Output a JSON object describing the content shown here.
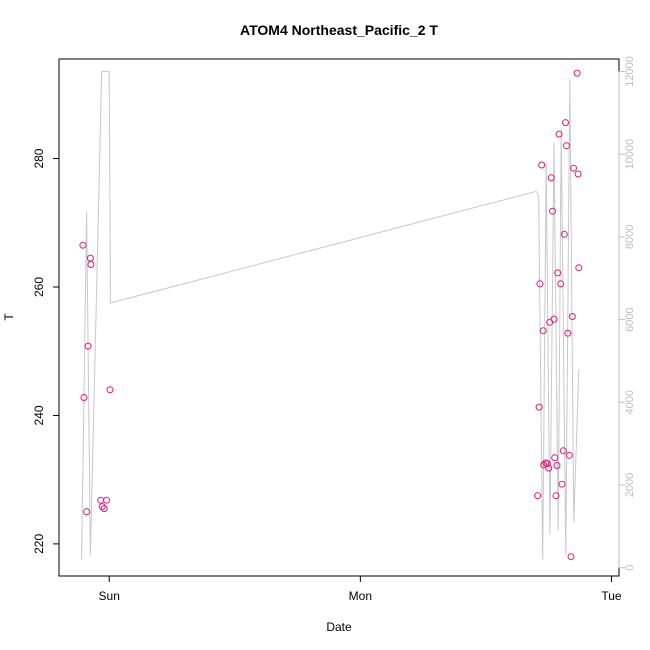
{
  "chart_data": {
    "type": "scatter",
    "title": "ATOM4 Northeast_Pacific_2 T",
    "xlabel": "Date",
    "ylabel": "T",
    "x_ticks": [
      {
        "label": "Sun",
        "value": 0.0
      },
      {
        "label": "Mon",
        "value": 1.0
      },
      {
        "label": "Tue",
        "value": 2.0
      }
    ],
    "y_ticks": [
      220,
      240,
      260,
      280
    ],
    "y_ticks_right": [
      0,
      2000,
      4000,
      6000,
      8000,
      10000,
      12000
    ],
    "xlim": [
      -0.2,
      2.03
    ],
    "ylim": [
      215.0,
      295.5
    ],
    "ylim_right": [
      -200,
      12300
    ],
    "points_color": "#e6197c",
    "line_color": "#c8c8c8",
    "grid": false,
    "series": [
      {
        "values": [
          [
            -0.105,
            266.5
          ],
          [
            -0.101,
            242.8
          ],
          [
            -0.09,
            225.0
          ],
          [
            -0.084,
            250.8
          ],
          [
            -0.075,
            264.5
          ],
          [
            -0.073,
            263.5
          ],
          [
            -0.034,
            226.8
          ],
          [
            -0.028,
            225.8
          ],
          [
            -0.02,
            225.5
          ],
          [
            -0.011,
            226.8
          ],
          [
            0.003,
            244.0
          ],
          [
            1.706,
            227.5
          ],
          [
            1.712,
            241.3
          ],
          [
            1.715,
            260.5
          ],
          [
            1.722,
            279.0
          ],
          [
            1.728,
            253.2
          ],
          [
            1.73,
            232.3
          ],
          [
            1.738,
            232.6
          ],
          [
            1.744,
            232.5
          ],
          [
            1.75,
            231.8
          ],
          [
            1.754,
            254.5
          ],
          [
            1.76,
            277.0
          ],
          [
            1.765,
            271.8
          ],
          [
            1.771,
            255.0
          ],
          [
            1.774,
            233.4
          ],
          [
            1.779,
            227.5
          ],
          [
            1.783,
            232.2
          ],
          [
            1.786,
            262.2
          ],
          [
            1.791,
            283.8
          ],
          [
            1.798,
            260.5
          ],
          [
            1.803,
            229.3
          ],
          [
            1.808,
            234.5
          ],
          [
            1.812,
            268.2
          ],
          [
            1.817,
            285.6
          ],
          [
            1.821,
            282.0
          ],
          [
            1.826,
            252.8
          ],
          [
            1.832,
            233.8
          ],
          [
            1.839,
            218.0
          ],
          [
            1.844,
            255.4
          ],
          [
            1.849,
            278.5
          ],
          [
            1.863,
            293.3
          ],
          [
            1.867,
            277.6
          ],
          [
            1.87,
            263.0
          ]
        ]
      },
      {
        "axis": "right",
        "values": [
          [
            -0.11,
            200
          ],
          [
            -0.09,
            8600
          ],
          [
            -0.075,
            300
          ],
          [
            -0.03,
            12000
          ],
          [
            0.0,
            12000
          ],
          [
            0.005,
            6400
          ],
          [
            1.7,
            9100
          ],
          [
            1.71,
            9000
          ],
          [
            1.726,
            200
          ],
          [
            1.74,
            9800
          ],
          [
            1.755,
            800
          ],
          [
            1.771,
            10300
          ],
          [
            1.788,
            900
          ],
          [
            1.8,
            10600
          ],
          [
            1.818,
            300
          ],
          [
            1.834,
            11800
          ],
          [
            1.85,
            1100
          ],
          [
            1.87,
            4800
          ]
        ]
      }
    ]
  }
}
